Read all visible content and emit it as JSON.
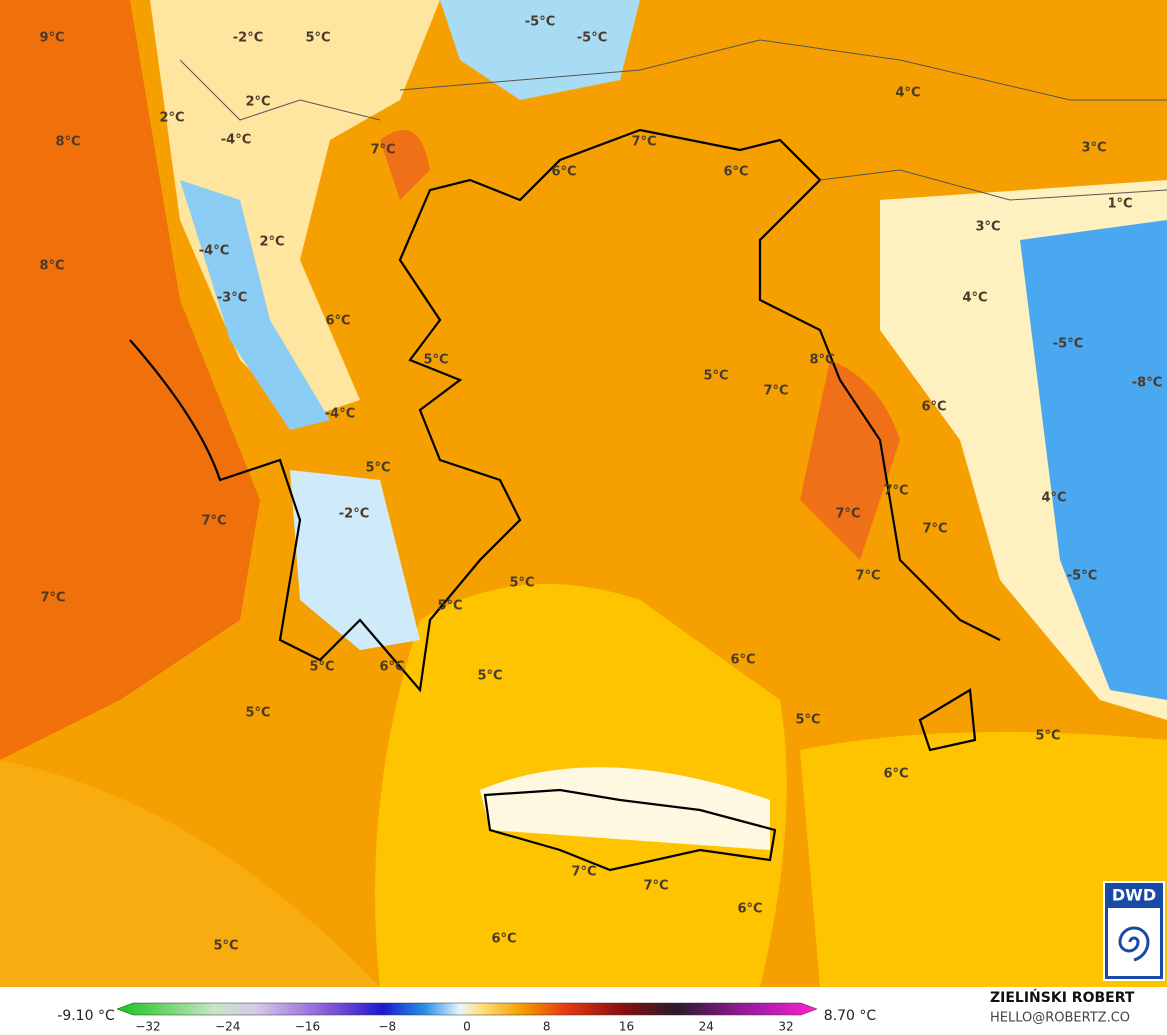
{
  "map": {
    "labels": [
      "9°C",
      "-2°C",
      "5°C",
      "-5°C",
      "-5°C",
      "2°C",
      "2°C",
      "-4°C",
      "8°C",
      "7°C",
      "6°C",
      "7°C",
      "6°C",
      "4°C",
      "3°C",
      "1°C",
      "3°C",
      "-4°C",
      "2°C",
      "8°C",
      "-3°C",
      "6°C",
      "4°C",
      "-5°C",
      "5°C",
      "8°C",
      "5°C",
      "7°C",
      "-8°C",
      "-4°C",
      "6°C",
      "5°C",
      "7°C",
      "4°C",
      "-2°C",
      "7°C",
      "7°C",
      "7°C",
      "7°C",
      "-5°C",
      "7°C",
      "5°C",
      "5°C",
      "6°C",
      "5°C",
      "6°C",
      "5°C",
      "5°C",
      "5°C",
      "5°C",
      "6°C",
      "7°C",
      "7°C",
      "6°C",
      "6°C",
      "5°C"
    ]
  },
  "legend": {
    "min_label": "-9.10 °C",
    "max_label": "8.70 °C",
    "ticks": [
      "−32",
      "−24",
      "−16",
      "−8",
      "0",
      "8",
      "16",
      "24",
      "32"
    ]
  },
  "credits": {
    "author": "ZIELIŃSKI ROBERT",
    "contact": "HELLO@ROBERTZ.CO",
    "logo": "DWD"
  }
}
